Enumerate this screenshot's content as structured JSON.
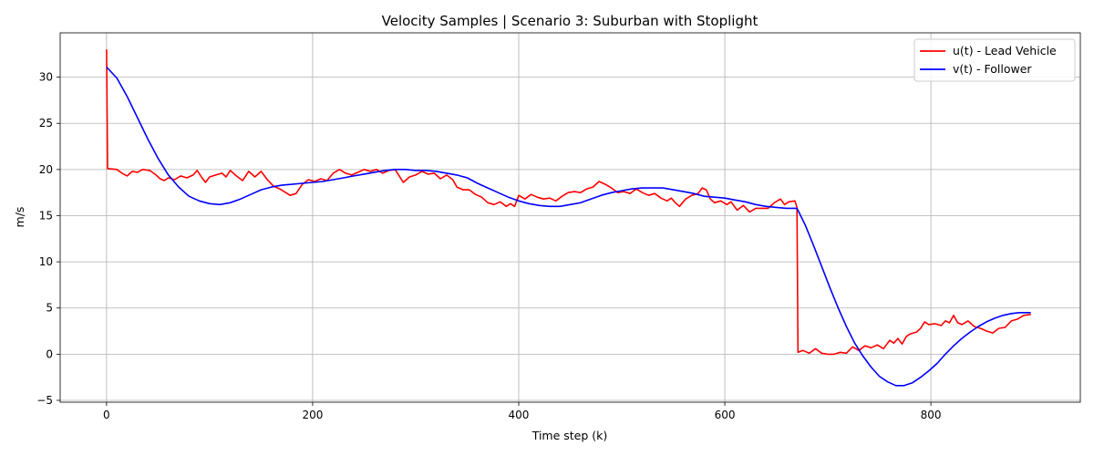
{
  "chart_data": {
    "type": "line",
    "title": "Velocity Samples | Scenario 3: Suburban with Stoplight",
    "xlabel": "Time step (k)",
    "ylabel": "m/s",
    "xlim": [
      -45,
      945
    ],
    "ylim": [
      -5.2,
      34.8
    ],
    "xticks": [
      0,
      200,
      400,
      600,
      800
    ],
    "yticks": [
      -5,
      0,
      5,
      10,
      15,
      20,
      25,
      30
    ],
    "grid": true,
    "legend_position": "top-right",
    "series": [
      {
        "name": "u(t) - Lead Vehicle",
        "color": "#ff0000",
        "points": [
          [
            0,
            33.0
          ],
          [
            1,
            20.1
          ],
          [
            10,
            20.0
          ],
          [
            15,
            19.6
          ],
          [
            20,
            19.3
          ],
          [
            25,
            19.8
          ],
          [
            30,
            19.7
          ],
          [
            35,
            20.0
          ],
          [
            42,
            19.9
          ],
          [
            48,
            19.4
          ],
          [
            52,
            19.0
          ],
          [
            56,
            18.8
          ],
          [
            60,
            19.1
          ],
          [
            66,
            18.9
          ],
          [
            72,
            19.3
          ],
          [
            78,
            19.1
          ],
          [
            84,
            19.4
          ],
          [
            88,
            19.9
          ],
          [
            92,
            19.2
          ],
          [
            96,
            18.6
          ],
          [
            100,
            19.2
          ],
          [
            106,
            19.4
          ],
          [
            112,
            19.6
          ],
          [
            116,
            19.2
          ],
          [
            120,
            19.9
          ],
          [
            126,
            19.3
          ],
          [
            132,
            18.8
          ],
          [
            138,
            19.8
          ],
          [
            144,
            19.2
          ],
          [
            150,
            19.8
          ],
          [
            156,
            18.9
          ],
          [
            162,
            18.2
          ],
          [
            168,
            17.9
          ],
          [
            174,
            17.5
          ],
          [
            178,
            17.2
          ],
          [
            184,
            17.4
          ],
          [
            190,
            18.4
          ],
          [
            196,
            18.9
          ],
          [
            202,
            18.7
          ],
          [
            208,
            19.0
          ],
          [
            214,
            18.8
          ],
          [
            220,
            19.6
          ],
          [
            226,
            20.0
          ],
          [
            232,
            19.6
          ],
          [
            238,
            19.4
          ],
          [
            244,
            19.7
          ],
          [
            250,
            20.0
          ],
          [
            256,
            19.8
          ],
          [
            262,
            20.0
          ],
          [
            268,
            19.6
          ],
          [
            274,
            19.9
          ],
          [
            280,
            20.0
          ],
          [
            284,
            19.3
          ],
          [
            288,
            18.6
          ],
          [
            294,
            19.2
          ],
          [
            300,
            19.4
          ],
          [
            306,
            19.8
          ],
          [
            312,
            19.5
          ],
          [
            318,
            19.6
          ],
          [
            324,
            19.0
          ],
          [
            330,
            19.4
          ],
          [
            336,
            18.9
          ],
          [
            340,
            18.1
          ],
          [
            346,
            17.8
          ],
          [
            352,
            17.8
          ],
          [
            358,
            17.3
          ],
          [
            364,
            17.0
          ],
          [
            370,
            16.4
          ],
          [
            376,
            16.2
          ],
          [
            382,
            16.5
          ],
          [
            388,
            16.0
          ],
          [
            392,
            16.3
          ],
          [
            396,
            16.0
          ],
          [
            400,
            17.2
          ],
          [
            406,
            16.8
          ],
          [
            412,
            17.3
          ],
          [
            418,
            17.0
          ],
          [
            424,
            16.8
          ],
          [
            430,
            16.9
          ],
          [
            436,
            16.6
          ],
          [
            442,
            17.1
          ],
          [
            448,
            17.5
          ],
          [
            454,
            17.6
          ],
          [
            460,
            17.5
          ],
          [
            466,
            17.9
          ],
          [
            472,
            18.1
          ],
          [
            478,
            18.7
          ],
          [
            484,
            18.4
          ],
          [
            490,
            18.0
          ],
          [
            496,
            17.5
          ],
          [
            502,
            17.6
          ],
          [
            508,
            17.4
          ],
          [
            514,
            17.9
          ],
          [
            520,
            17.5
          ],
          [
            526,
            17.2
          ],
          [
            532,
            17.4
          ],
          [
            538,
            16.9
          ],
          [
            544,
            16.6
          ],
          [
            548,
            16.9
          ],
          [
            552,
            16.4
          ],
          [
            556,
            16.0
          ],
          [
            562,
            16.8
          ],
          [
            568,
            17.2
          ],
          [
            574,
            17.4
          ],
          [
            578,
            18.0
          ],
          [
            582,
            17.8
          ],
          [
            586,
            16.8
          ],
          [
            590,
            16.4
          ],
          [
            596,
            16.6
          ],
          [
            602,
            16.2
          ],
          [
            606,
            16.5
          ],
          [
            612,
            15.6
          ],
          [
            618,
            16.1
          ],
          [
            624,
            15.4
          ],
          [
            630,
            15.8
          ],
          [
            636,
            15.8
          ],
          [
            642,
            15.8
          ],
          [
            648,
            16.4
          ],
          [
            654,
            16.8
          ],
          [
            658,
            16.2
          ],
          [
            662,
            16.5
          ],
          [
            668,
            16.6
          ],
          [
            670,
            15.9
          ],
          [
            671,
            0.2
          ],
          [
            676,
            0.4
          ],
          [
            682,
            0.1
          ],
          [
            688,
            0.6
          ],
          [
            694,
            0.1
          ],
          [
            700,
            0.0
          ],
          [
            706,
            0.0
          ],
          [
            712,
            0.2
          ],
          [
            718,
            0.1
          ],
          [
            724,
            0.8
          ],
          [
            730,
            0.4
          ],
          [
            736,
            0.9
          ],
          [
            742,
            0.7
          ],
          [
            748,
            1.0
          ],
          [
            754,
            0.6
          ],
          [
            760,
            1.5
          ],
          [
            764,
            1.2
          ],
          [
            768,
            1.7
          ],
          [
            772,
            1.1
          ],
          [
            776,
            1.9
          ],
          [
            780,
            2.2
          ],
          [
            786,
            2.4
          ],
          [
            790,
            2.8
          ],
          [
            794,
            3.5
          ],
          [
            798,
            3.2
          ],
          [
            804,
            3.3
          ],
          [
            810,
            3.1
          ],
          [
            814,
            3.6
          ],
          [
            818,
            3.4
          ],
          [
            822,
            4.2
          ],
          [
            826,
            3.4
          ],
          [
            830,
            3.2
          ],
          [
            836,
            3.6
          ],
          [
            842,
            3.0
          ],
          [
            848,
            2.8
          ],
          [
            854,
            2.5
          ],
          [
            860,
            2.3
          ],
          [
            866,
            2.8
          ],
          [
            872,
            2.9
          ],
          [
            878,
            3.6
          ],
          [
            884,
            3.8
          ],
          [
            890,
            4.2
          ],
          [
            897,
            4.3
          ]
        ]
      },
      {
        "name": "v(t) - Follower",
        "color": "#0000ff",
        "points": [
          [
            0,
            31.1
          ],
          [
            10,
            29.9
          ],
          [
            20,
            27.9
          ],
          [
            30,
            25.6
          ],
          [
            40,
            23.3
          ],
          [
            50,
            21.2
          ],
          [
            60,
            19.4
          ],
          [
            70,
            18.1
          ],
          [
            80,
            17.1
          ],
          [
            90,
            16.6
          ],
          [
            100,
            16.3
          ],
          [
            110,
            16.2
          ],
          [
            120,
            16.4
          ],
          [
            130,
            16.8
          ],
          [
            140,
            17.3
          ],
          [
            150,
            17.8
          ],
          [
            160,
            18.1
          ],
          [
            170,
            18.3
          ],
          [
            180,
            18.4
          ],
          [
            190,
            18.5
          ],
          [
            200,
            18.6
          ],
          [
            210,
            18.7
          ],
          [
            220,
            18.9
          ],
          [
            230,
            19.1
          ],
          [
            240,
            19.3
          ],
          [
            250,
            19.5
          ],
          [
            260,
            19.7
          ],
          [
            270,
            19.9
          ],
          [
            280,
            20.0
          ],
          [
            290,
            20.0
          ],
          [
            300,
            19.9
          ],
          [
            310,
            19.9
          ],
          [
            320,
            19.8
          ],
          [
            330,
            19.6
          ],
          [
            340,
            19.4
          ],
          [
            350,
            19.1
          ],
          [
            360,
            18.5
          ],
          [
            370,
            18.0
          ],
          [
            380,
            17.5
          ],
          [
            390,
            17.0
          ],
          [
            400,
            16.6
          ],
          [
            410,
            16.3
          ],
          [
            420,
            16.1
          ],
          [
            430,
            16.0
          ],
          [
            440,
            16.0
          ],
          [
            450,
            16.2
          ],
          [
            460,
            16.4
          ],
          [
            470,
            16.8
          ],
          [
            480,
            17.2
          ],
          [
            490,
            17.5
          ],
          [
            500,
            17.7
          ],
          [
            510,
            17.9
          ],
          [
            520,
            18.0
          ],
          [
            530,
            18.0
          ],
          [
            540,
            18.0
          ],
          [
            550,
            17.8
          ],
          [
            560,
            17.6
          ],
          [
            570,
            17.4
          ],
          [
            580,
            17.1
          ],
          [
            590,
            17.0
          ],
          [
            600,
            16.9
          ],
          [
            610,
            16.7
          ],
          [
            620,
            16.5
          ],
          [
            630,
            16.2
          ],
          [
            640,
            16.0
          ],
          [
            650,
            15.9
          ],
          [
            660,
            15.8
          ],
          [
            670,
            15.8
          ],
          [
            678,
            14.0
          ],
          [
            686,
            11.8
          ],
          [
            694,
            9.5
          ],
          [
            702,
            7.2
          ],
          [
            710,
            5.0
          ],
          [
            718,
            3.0
          ],
          [
            726,
            1.2
          ],
          [
            734,
            -0.2
          ],
          [
            742,
            -1.4
          ],
          [
            750,
            -2.4
          ],
          [
            758,
            -3.0
          ],
          [
            766,
            -3.4
          ],
          [
            774,
            -3.4
          ],
          [
            782,
            -3.1
          ],
          [
            790,
            -2.5
          ],
          [
            798,
            -1.8
          ],
          [
            806,
            -1.0
          ],
          [
            814,
            0.0
          ],
          [
            822,
            0.9
          ],
          [
            830,
            1.7
          ],
          [
            838,
            2.4
          ],
          [
            846,
            3.0
          ],
          [
            854,
            3.5
          ],
          [
            862,
            3.9
          ],
          [
            870,
            4.2
          ],
          [
            878,
            4.4
          ],
          [
            886,
            4.5
          ],
          [
            897,
            4.5
          ]
        ]
      }
    ]
  }
}
